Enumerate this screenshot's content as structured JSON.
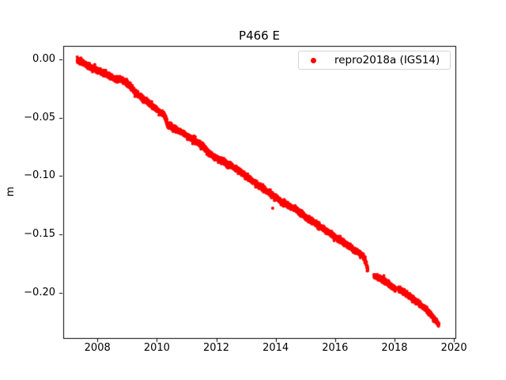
{
  "figure": {
    "title": "P466 E",
    "background": "#ffffff"
  },
  "legend": {
    "position": "upper right",
    "items": [
      {
        "label": "repro2018a (IGS14)",
        "marker": "dot",
        "marker_color": "#ff0000"
      }
    ]
  },
  "chart_data": {
    "type": "scatter",
    "title": "P466 E",
    "xlabel": "",
    "ylabel": "m",
    "xlim": [
      2006.85,
      2020.05
    ],
    "ylim": [
      -0.239,
      0.0115
    ],
    "xticks": [
      2008,
      2010,
      2012,
      2014,
      2016,
      2018,
      2020
    ],
    "xtick_labels": [
      "2008",
      "2010",
      "2012",
      "2014",
      "2016",
      "2018",
      "2020"
    ],
    "yticks": [
      0.0,
      -0.05,
      -0.1,
      -0.15,
      -0.2
    ],
    "ytick_labels": [
      "0.00",
      "−0.05",
      "−0.10",
      "−0.15",
      "−0.20"
    ],
    "grid": false,
    "legend_position": "upper right",
    "axes_color": "#000000",
    "series": [
      {
        "name": "repro2018a (IGS14)",
        "color": "#ff0000",
        "marker": "dot",
        "marker_radius_px": 2,
        "sampling_per_year": 365,
        "noise_sigma_m": 0.0011,
        "segments": [
          [
            [
              2007.32,
              -0.001
            ],
            [
              2007.5,
              -0.0028
            ],
            [
              2007.7,
              -0.0058
            ],
            [
              2008.02,
              -0.0092
            ],
            [
              2008.34,
              -0.0139
            ],
            [
              2008.66,
              -0.0173
            ],
            [
              2008.82,
              -0.0175
            ],
            [
              2008.98,
              -0.02
            ],
            [
              2009.3,
              -0.0288
            ],
            [
              2009.62,
              -0.0356
            ],
            [
              2009.94,
              -0.0417
            ],
            [
              2010.18,
              -0.0464
            ],
            [
              2010.28,
              -0.049
            ],
            [
              2010.36,
              -0.0566
            ],
            [
              2010.58,
              -0.0593
            ],
            [
              2010.89,
              -0.0633
            ],
            [
              2011.21,
              -0.0688
            ],
            [
              2011.53,
              -0.0742
            ],
            [
              2011.85,
              -0.0823
            ],
            [
              2012.17,
              -0.0863
            ],
            [
              2012.49,
              -0.0911
            ],
            [
              2012.81,
              -0.0965
            ],
            [
              2013.13,
              -0.1026
            ],
            [
              2013.45,
              -0.1087
            ],
            [
              2013.77,
              -0.1141
            ],
            [
              2014.09,
              -0.1202
            ],
            [
              2014.41,
              -0.1249
            ],
            [
              2014.73,
              -0.1297
            ],
            [
              2015.05,
              -0.1358
            ],
            [
              2015.37,
              -0.1412
            ],
            [
              2015.69,
              -0.1466
            ],
            [
              2016.01,
              -0.1527
            ],
            [
              2016.33,
              -0.1574
            ],
            [
              2016.65,
              -0.1642
            ],
            [
              2016.92,
              -0.1676
            ],
            [
              2017.0,
              -0.171
            ],
            [
              2017.1,
              -0.1798
            ]
          ],
          [
            [
              2017.31,
              -0.1852
            ],
            [
              2017.6,
              -0.1892
            ],
            [
              2017.9,
              -0.1946
            ],
            [
              2018.03,
              -0.1967
            ]
          ],
          [
            [
              2018.13,
              -0.1967
            ],
            [
              2018.45,
              -0.2021
            ],
            [
              2018.77,
              -0.2082
            ],
            [
              2019.09,
              -0.215
            ],
            [
              2019.25,
              -0.2197
            ],
            [
              2019.41,
              -0.2245
            ],
            [
              2019.49,
              -0.2272
            ]
          ]
        ],
        "outliers": [
          [
            2013.9,
            -0.1277
          ],
          [
            2014.75,
            -0.1304
          ]
        ]
      }
    ]
  }
}
